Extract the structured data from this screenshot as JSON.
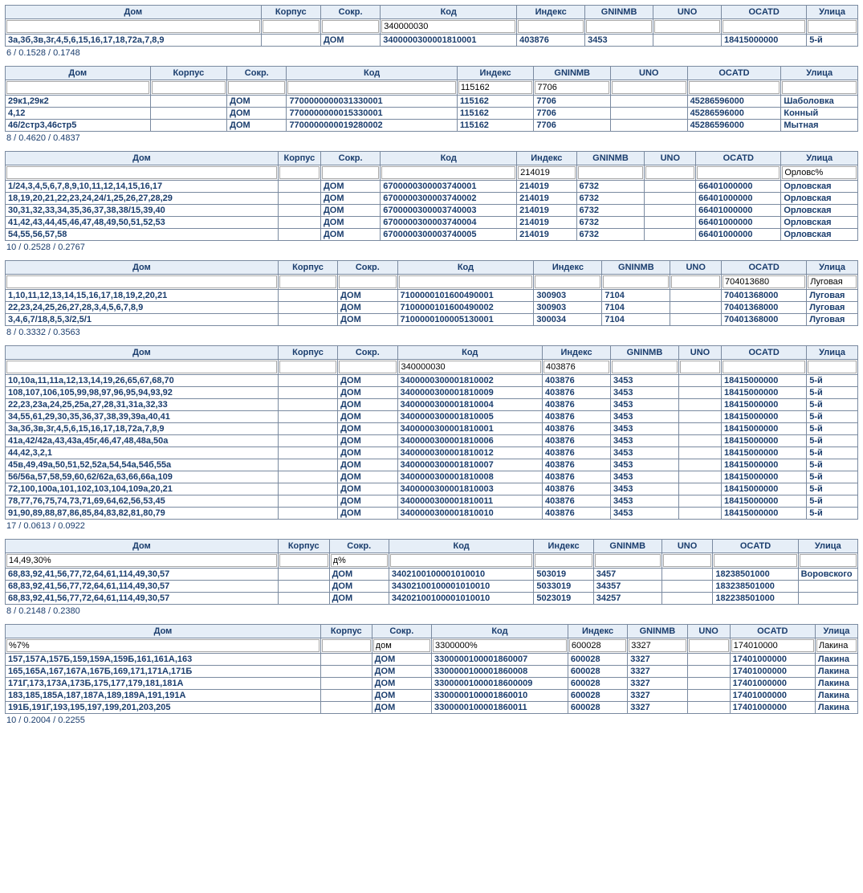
{
  "colors": {
    "header_bg": "#e6eef7",
    "border": "#7a8aa0",
    "text": "#1a3d6d",
    "body_bg": "#ffffff"
  },
  "headers": [
    "Дом",
    "Корпус",
    "Сокр.",
    "Код",
    "Индекс",
    "GNINMB",
    "UNO",
    "OCATD",
    "Улица"
  ],
  "blocks": [
    {
      "col_widths": [
        "30%",
        "7%",
        "7%",
        "16%",
        "8%",
        "8%",
        "8%",
        "10%",
        "6%"
      ],
      "filters": {
        "dom": "",
        "korp": "",
        "sokr": "",
        "kod": "340000030",
        "index": "",
        "gninmb": "",
        "uno": "",
        "ocatd": "",
        "street": ""
      },
      "rows": [
        {
          "dom": "3а,3б,3в,3г,4,5,6,15,16,17,18,72а,7,8,9",
          "korp": "",
          "sokr": "ДОМ",
          "kod": "3400000300001810001",
          "index": "403876",
          "gninmb": "3453",
          "uno": "",
          "ocatd": "18415000000",
          "street": "5-й"
        }
      ],
      "stats": "6 / 0.1528 / 0.1748"
    },
    {
      "col_widths": [
        "17%",
        "9%",
        "7%",
        "20%",
        "9%",
        "9%",
        "9%",
        "11%",
        "9%"
      ],
      "filters": {
        "dom": "",
        "korp": "",
        "sokr": "",
        "kod": "",
        "index": "115162",
        "gninmb": "7706",
        "uno": "",
        "ocatd": "",
        "street": ""
      },
      "rows": [
        {
          "dom": "29к1,29к2",
          "korp": "",
          "sokr": "ДОМ",
          "kod": "7700000000031330001",
          "index": "115162",
          "gninmb": "7706",
          "uno": "",
          "ocatd": "45286596000",
          "street": "Шаболовка"
        },
        {
          "dom": "4,12",
          "korp": "",
          "sokr": "ДОМ",
          "kod": "7700000000015330001",
          "index": "115162",
          "gninmb": "7706",
          "uno": "",
          "ocatd": "45286596000",
          "street": "Конный"
        },
        {
          "dom": "46/2стр3,46стр5",
          "korp": "",
          "sokr": "ДОМ",
          "kod": "7700000000019280002",
          "index": "115162",
          "gninmb": "7706",
          "uno": "",
          "ocatd": "45286596000",
          "street": "Мытная"
        }
      ],
      "stats": "8 / 0.4620 / 0.4837"
    },
    {
      "col_widths": [
        "32%",
        "5%",
        "7%",
        "16%",
        "7%",
        "8%",
        "6%",
        "10%",
        "9%"
      ],
      "filters": {
        "dom": "",
        "korp": "",
        "sokr": "",
        "kod": "",
        "index": "214019",
        "gninmb": "",
        "uno": "",
        "ocatd": "",
        "street": "Орловс%"
      },
      "rows": [
        {
          "dom": "1/24,3,4,5,6,7,8,9,10,11,12,14,15,16,17",
          "korp": "",
          "sokr": "ДОМ",
          "kod": "6700000300003740001",
          "index": "214019",
          "gninmb": "6732",
          "uno": "",
          "ocatd": "66401000000",
          "street": "Орловская"
        },
        {
          "dom": "18,19,20,21,22,23,24,24/1,25,26,27,28,29",
          "korp": "",
          "sokr": "ДОМ",
          "kod": "6700000300003740002",
          "index": "214019",
          "gninmb": "6732",
          "uno": "",
          "ocatd": "66401000000",
          "street": "Орловская"
        },
        {
          "dom": "30,31,32,33,34,35,36,37,38,38/15,39,40",
          "korp": "",
          "sokr": "ДОМ",
          "kod": "6700000300003740003",
          "index": "214019",
          "gninmb": "6732",
          "uno": "",
          "ocatd": "66401000000",
          "street": "Орловская"
        },
        {
          "dom": "41,42,43,44,45,46,47,48,49,50,51,52,53",
          "korp": "",
          "sokr": "ДОМ",
          "kod": "6700000300003740004",
          "index": "214019",
          "gninmb": "6732",
          "uno": "",
          "ocatd": "66401000000",
          "street": "Орловская"
        },
        {
          "dom": "54,55,56,57,58",
          "korp": "",
          "sokr": "ДОМ",
          "kod": "6700000300003740005",
          "index": "214019",
          "gninmb": "6732",
          "uno": "",
          "ocatd": "66401000000",
          "street": "Орловская"
        }
      ],
      "stats": "10 / 0.2528 / 0.2767"
    },
    {
      "col_widths": [
        "32%",
        "7%",
        "7%",
        "16%",
        "8%",
        "8%",
        "6%",
        "10%",
        "6%"
      ],
      "filters": {
        "dom": "",
        "korp": "",
        "sokr": "",
        "kod": "",
        "index": "",
        "gninmb": "",
        "uno": "",
        "ocatd": "704013680",
        "street": "Луговая"
      },
      "rows": [
        {
          "dom": "1,10,11,12,13,14,15,16,17,18,19,2,20,21",
          "korp": "",
          "sokr": "ДОМ",
          "kod": "7100000101600490001",
          "index": "300903",
          "gninmb": "7104",
          "uno": "",
          "ocatd": "70401368000",
          "street": "Луговая"
        },
        {
          "dom": "22,23,24,25,26,27,28,3,4,5,6,7,8,9",
          "korp": "",
          "sokr": "ДОМ",
          "kod": "7100000101600490002",
          "index": "300903",
          "gninmb": "7104",
          "uno": "",
          "ocatd": "70401368000",
          "street": "Луговая"
        },
        {
          "dom": "3,4,6,7/18,8,5,3/2,5/1",
          "korp": "",
          "sokr": "ДОМ",
          "kod": "7100000100005130001",
          "index": "300034",
          "gninmb": "7104",
          "uno": "",
          "ocatd": "70401368000",
          "street": "Луговая"
        }
      ],
      "stats": "8 / 0.3332 / 0.3563"
    },
    {
      "col_widths": [
        "32%",
        "7%",
        "7%",
        "17%",
        "8%",
        "8%",
        "5%",
        "10%",
        "6%"
      ],
      "filters": {
        "dom": "",
        "korp": "",
        "sokr": "",
        "kod": "340000030",
        "index": "403876",
        "gninmb": "",
        "uno": "",
        "ocatd": "",
        "street": ""
      },
      "rows": [
        {
          "dom": "10,10а,11,11а,12,13,14,19,26,65,67,68,70",
          "korp": "",
          "sokr": "ДОМ",
          "kod": "3400000300001810002",
          "index": "403876",
          "gninmb": "3453",
          "uno": "",
          "ocatd": "18415000000",
          "street": "5-й"
        },
        {
          "dom": "108,107,106,105,99,98,97,96,95,94,93,92",
          "korp": "",
          "sokr": "ДОМ",
          "kod": "3400000300001810009",
          "index": "403876",
          "gninmb": "3453",
          "uno": "",
          "ocatd": "18415000000",
          "street": "5-й"
        },
        {
          "dom": "22,23,23а,24,25,25а,27,28,31,31а,32,33",
          "korp": "",
          "sokr": "ДОМ",
          "kod": "3400000300001810004",
          "index": "403876",
          "gninmb": "3453",
          "uno": "",
          "ocatd": "18415000000",
          "street": "5-й"
        },
        {
          "dom": "34,55,61,29,30,35,36,37,38,39,39а,40,41",
          "korp": "",
          "sokr": "ДОМ",
          "kod": "3400000300001810005",
          "index": "403876",
          "gninmb": "3453",
          "uno": "",
          "ocatd": "18415000000",
          "street": "5-й"
        },
        {
          "dom": "3а,3б,3в,3г,4,5,6,15,16,17,18,72а,7,8,9",
          "korp": "",
          "sokr": "ДОМ",
          "kod": "3400000300001810001",
          "index": "403876",
          "gninmb": "3453",
          "uno": "",
          "ocatd": "18415000000",
          "street": "5-й"
        },
        {
          "dom": "41а,42/42а,43,43а,45г,46,47,48,48а,50а",
          "korp": "",
          "sokr": "ДОМ",
          "kod": "3400000300001810006",
          "index": "403876",
          "gninmb": "3453",
          "uno": "",
          "ocatd": "18415000000",
          "street": "5-й"
        },
        {
          "dom": "44,42,3,2,1",
          "korp": "",
          "sokr": "ДОМ",
          "kod": "3400000300001810012",
          "index": "403876",
          "gninmb": "3453",
          "uno": "",
          "ocatd": "18415000000",
          "street": "5-й"
        },
        {
          "dom": "45в,49,49а,50,51,52,52а,54,54а,54б,55а",
          "korp": "",
          "sokr": "ДОМ",
          "kod": "3400000300001810007",
          "index": "403876",
          "gninmb": "3453",
          "uno": "",
          "ocatd": "18415000000",
          "street": "5-й"
        },
        {
          "dom": "56/56а,57,58,59,60,62/62а,63,66,66а,109",
          "korp": "",
          "sokr": "ДОМ",
          "kod": "3400000300001810008",
          "index": "403876",
          "gninmb": "3453",
          "uno": "",
          "ocatd": "18415000000",
          "street": "5-й"
        },
        {
          "dom": "72,100,100а,101,102,103,104,109а,20,21",
          "korp": "",
          "sokr": "ДОМ",
          "kod": "3400000300001810003",
          "index": "403876",
          "gninmb": "3453",
          "uno": "",
          "ocatd": "18415000000",
          "street": "5-й"
        },
        {
          "dom": "78,77,76,75,74,73,71,69,64,62,56,53,45",
          "korp": "",
          "sokr": "ДОМ",
          "kod": "3400000300001810011",
          "index": "403876",
          "gninmb": "3453",
          "uno": "",
          "ocatd": "18415000000",
          "street": "5-й"
        },
        {
          "dom": "91,90,89,88,87,86,85,84,83,82,81,80,79",
          "korp": "",
          "sokr": "ДОМ",
          "kod": "3400000300001810010",
          "index": "403876",
          "gninmb": "3453",
          "uno": "",
          "ocatd": "18415000000",
          "street": "5-й"
        }
      ],
      "stats": "17 / 0.0613 / 0.0922"
    },
    {
      "col_widths": [
        "32%",
        "6%",
        "7%",
        "17%",
        "7%",
        "8%",
        "6%",
        "10%",
        "7%"
      ],
      "filters": {
        "dom": "14,49,30%",
        "korp": "",
        "sokr": "д%",
        "kod": "",
        "index": "",
        "gninmb": "",
        "uno": "",
        "ocatd": "",
        "street": ""
      },
      "rows": [
        {
          "dom": "68,83,92,41,56,77,72,64,61,114,49,30,57",
          "korp": "",
          "sokr": "ДОМ",
          "kod": "3402100100001010010",
          "index": "503019",
          "gninmb": "3457",
          "uno": "",
          "ocatd": "18238501000",
          "street": "Воровского"
        },
        {
          "dom": "68,83,92,41,56,77,72,64,61,114,49,30,57",
          "korp": "",
          "sokr": "ДОМ",
          "kod": "34302100100001010010",
          "index": "5033019",
          "gninmb": "34357",
          "uno": "",
          "ocatd": "183238501000",
          "street": ""
        },
        {
          "dom": "68,83,92,41,56,77,72,64,61,114,49,30,57",
          "korp": "",
          "sokr": "ДОМ",
          "kod": "34202100100001010010",
          "index": "5023019",
          "gninmb": "34257",
          "uno": "",
          "ocatd": "182238501000",
          "street": ""
        }
      ],
      "stats": "8 / 0.2148 / 0.2380"
    },
    {
      "col_widths": [
        "37%",
        "6%",
        "7%",
        "16%",
        "7%",
        "7%",
        "5%",
        "10%",
        "5%"
      ],
      "filters": {
        "dom": "%7%",
        "korp": "",
        "sokr": "дом",
        "kod": "3300000%",
        "index": "600028",
        "gninmb": "3327",
        "uno": "",
        "ocatd": "174010000",
        "street": "Лакина"
      },
      "rows": [
        {
          "dom": "157,157А,157Б,159,159А,159Б,161,161А,163",
          "korp": "",
          "sokr": "ДОМ",
          "kod": "3300000100001860007",
          "index": "600028",
          "gninmb": "3327",
          "uno": "",
          "ocatd": "17401000000",
          "street": "Лакина"
        },
        {
          "dom": "165,165А,167,167А,167Б,169,171,171А,171Б",
          "korp": "",
          "sokr": "ДОМ",
          "kod": "3300000100001860008",
          "index": "600028",
          "gninmb": "3327",
          "uno": "",
          "ocatd": "17401000000",
          "street": "Лакина"
        },
        {
          "dom": "171Г,173,173А,173Б,175,177,179,181,181А",
          "korp": "",
          "sokr": "ДОМ",
          "kod": "33000001000018600009",
          "index": "600028",
          "gninmb": "3327",
          "uno": "",
          "ocatd": "17401000000",
          "street": "Лакина"
        },
        {
          "dom": "183,185,185А,187,187А,189,189А,191,191А",
          "korp": "",
          "sokr": "ДОМ",
          "kod": "3300000100001860010",
          "index": "600028",
          "gninmb": "3327",
          "uno": "",
          "ocatd": "17401000000",
          "street": "Лакина"
        },
        {
          "dom": "191Б,191Г,193,195,197,199,201,203,205",
          "korp": "",
          "sokr": "ДОМ",
          "kod": "3300000100001860011",
          "index": "600028",
          "gninmb": "3327",
          "uno": "",
          "ocatd": "17401000000",
          "street": "Лакина"
        }
      ],
      "stats": "10 / 0.2004 / 0.2255"
    }
  ]
}
